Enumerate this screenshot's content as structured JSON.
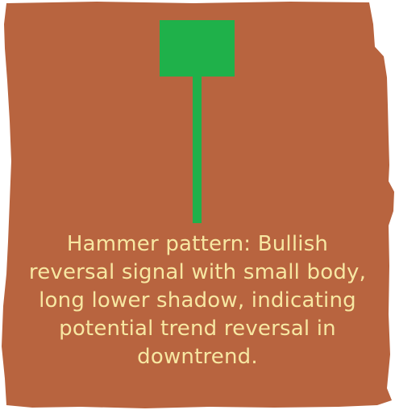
{
  "colors": {
    "background": "#b8643f",
    "candle": "#1fb14a",
    "caption_text": "#f7e7a2"
  },
  "caption": {
    "lines": [
      "Hammer pattern: Bullish",
      "reversal signal with small body,",
      "long lower shadow, indicating",
      "potential trend reversal in",
      "downtrend."
    ]
  }
}
